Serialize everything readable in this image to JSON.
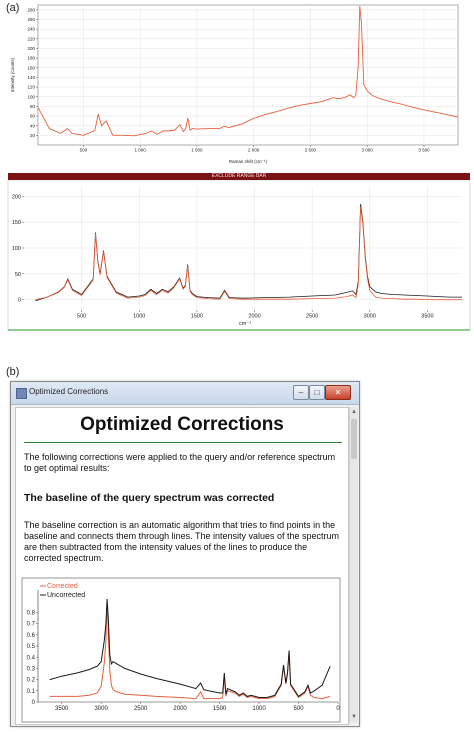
{
  "panel_a_label": "(a)",
  "panel_b_label": "(b)",
  "exclude_bar": {
    "label": "EXCLUDE RANGE BAR",
    "color": "#7a1414"
  },
  "colors": {
    "corrected": "#e8603c",
    "uncorrected": "#1a1a1a",
    "green_rule": "#2e7d32"
  },
  "window": {
    "title": "Optimized Corrections",
    "buttons": {
      "minimize": "–",
      "maximize": "□",
      "close": "✕"
    },
    "heading": "Optimized Corrections",
    "intro": "The following corrections were applied to the query and/or reference spectrum to get optimal results:",
    "subheading": "The baseline of the query spectrum was corrected",
    "description": "The baseline correction is an automatic algorithm that tries to find points in the baseline and connects them through lines. The intensity values of the spectrum are then subtracted from the intensity values of the lines to produce the corrected spectrum.",
    "scroll_up_icon": "▲",
    "scroll_down_icon": "▼"
  },
  "chart_data": [
    {
      "type": "line",
      "title": "",
      "xlabel": "Raman shift (cm⁻¹)",
      "ylabel": "Intensity (counts)",
      "xlim": [
        100,
        3800
      ],
      "ylim": [
        0,
        290
      ],
      "x_ticks": [
        500,
        1000,
        1500,
        2000,
        2500,
        3000,
        3500
      ],
      "x_tick_labels": [
        "500",
        "1 000",
        "1 500",
        "2 000",
        "2 500",
        "3 000",
        "3 500"
      ],
      "y_ticks": [
        20,
        40,
        60,
        80,
        100,
        120,
        140,
        160,
        180,
        200,
        220,
        240,
        260,
        280
      ],
      "grid": true,
      "series": [
        {
          "color": "#e8603c",
          "x": [
            100,
            200,
            300,
            360,
            400,
            500,
            600,
            630,
            660,
            700,
            760,
            850,
            950,
            1050,
            1100,
            1150,
            1200,
            1300,
            1350,
            1380,
            1400,
            1420,
            1440,
            1460,
            1500,
            1600,
            1700,
            1740,
            1780,
            1900,
            2000,
            2100,
            2200,
            2300,
            2400,
            2500,
            2600,
            2700,
            2750,
            2800,
            2850,
            2880,
            2900,
            2920,
            2935,
            2950,
            2970,
            3000,
            3050,
            3100,
            3200,
            3300,
            3400,
            3500,
            3600,
            3700,
            3800
          ],
          "y": [
            78,
            34,
            24,
            34,
            24,
            20,
            30,
            64,
            40,
            50,
            20,
            20,
            19,
            24,
            29,
            22,
            29,
            30,
            42,
            28,
            33,
            56,
            31,
            34,
            33,
            34,
            34,
            39,
            36,
            44,
            55,
            63,
            69,
            76,
            82,
            86,
            90,
            98,
            96,
            98,
            104,
            98,
            103,
            160,
            288,
            250,
            125,
            112,
            102,
            97,
            90,
            85,
            78,
            73,
            68,
            63,
            58
          ]
        }
      ]
    },
    {
      "type": "line",
      "title": "",
      "xlabel": "cm⁻¹",
      "ylabel": "",
      "xlim": [
        0,
        3800
      ],
      "ylim": [
        -20,
        220
      ],
      "x_ticks": [
        500,
        1000,
        1500,
        2000,
        2500,
        3000,
        3500
      ],
      "y_ticks": [
        0,
        50,
        100,
        150,
        200
      ],
      "grid": true,
      "series": [
        {
          "color": "#1a1a1a",
          "x": [
            100,
            200,
            300,
            350,
            380,
            420,
            500,
            600,
            620,
            640,
            660,
            690,
            720,
            800,
            900,
            1000,
            1050,
            1100,
            1150,
            1200,
            1250,
            1300,
            1350,
            1380,
            1400,
            1420,
            1440,
            1460,
            1500,
            1600,
            1700,
            1740,
            1780,
            1900,
            2100,
            2300,
            2500,
            2700,
            2800,
            2850,
            2880,
            2900,
            2920,
            2940,
            2960,
            2980,
            3000,
            3050,
            3100,
            3200,
            3300,
            3400,
            3500,
            3600,
            3700,
            3800
          ],
          "y": [
            -2,
            5,
            15,
            25,
            40,
            20,
            10,
            40,
            130,
            75,
            50,
            95,
            45,
            15,
            5,
            7,
            10,
            20,
            12,
            20,
            15,
            25,
            42,
            22,
            28,
            68,
            18,
            12,
            6,
            4,
            3,
            18,
            4,
            3,
            4,
            5,
            7,
            9,
            14,
            17,
            10,
            35,
            185,
            150,
            85,
            45,
            25,
            15,
            12,
            10,
            9,
            8,
            7,
            6,
            5,
            5
          ]
        },
        {
          "color": "#e8603c",
          "x": [
            100,
            200,
            300,
            350,
            380,
            420,
            500,
            600,
            620,
            640,
            660,
            690,
            720,
            800,
            900,
            1000,
            1050,
            1100,
            1150,
            1200,
            1250,
            1300,
            1350,
            1380,
            1400,
            1420,
            1440,
            1460,
            1500,
            1600,
            1700,
            1740,
            1780,
            1900,
            2100,
            2300,
            2500,
            2700,
            2800,
            2850,
            2880,
            2900,
            2920,
            2940,
            2960,
            2980,
            3000,
            3050,
            3100,
            3200,
            3300,
            3400,
            3500,
            3600,
            3700,
            3800
          ],
          "y": [
            0,
            5,
            14,
            24,
            38,
            18,
            8,
            38,
            128,
            73,
            48,
            93,
            43,
            13,
            3,
            5,
            8,
            18,
            10,
            18,
            13,
            23,
            40,
            20,
            26,
            66,
            16,
            10,
            4,
            2,
            1,
            16,
            2,
            1,
            1,
            1,
            2,
            3,
            6,
            9,
            4,
            30,
            180,
            145,
            80,
            40,
            18,
            5,
            3,
            2,
            1,
            1,
            0,
            0,
            0,
            0
          ]
        }
      ]
    },
    {
      "type": "line",
      "title": "",
      "xlabel": "",
      "ylabel": "",
      "xlim": [
        3800,
        0
      ],
      "ylim": [
        0,
        1.0
      ],
      "x_ticks": [
        3500,
        3000,
        2500,
        2000,
        1500,
        1000,
        500,
        0
      ],
      "y_ticks": [
        0,
        0.1,
        0.2,
        0.3,
        0.4,
        0.5,
        0.6,
        0.7,
        0.8
      ],
      "y_tick_labels": [
        "0",
        "0.1",
        "0.2",
        "0.3",
        "0.4",
        "0.5",
        "0.6",
        "0.7",
        "0.8"
      ],
      "grid": false,
      "legend": "top-left",
      "series": [
        {
          "name": "Corrected",
          "color": "#e8603c",
          "x": [
            3650,
            3500,
            3300,
            3150,
            3050,
            3000,
            2960,
            2940,
            2925,
            2910,
            2890,
            2870,
            2850,
            2800,
            2700,
            2500,
            2300,
            2000,
            1800,
            1740,
            1700,
            1500,
            1460,
            1440,
            1420,
            1400,
            1300,
            1250,
            1200,
            1150,
            1100,
            1000,
            900,
            800,
            720,
            690,
            660,
            640,
            620,
            600,
            500,
            420,
            380,
            350,
            300,
            200,
            100
          ],
          "y": [
            0.05,
            0.05,
            0.05,
            0.06,
            0.08,
            0.14,
            0.35,
            0.55,
            0.9,
            0.62,
            0.28,
            0.15,
            0.11,
            0.09,
            0.07,
            0.06,
            0.05,
            0.04,
            0.03,
            0.09,
            0.03,
            0.03,
            0.04,
            0.23,
            0.05,
            0.1,
            0.08,
            0.05,
            0.07,
            0.04,
            0.05,
            0.03,
            0.03,
            0.05,
            0.15,
            0.32,
            0.16,
            0.25,
            0.45,
            0.15,
            0.04,
            0.08,
            0.14,
            0.06,
            0.04,
            0.03,
            0.05
          ]
        },
        {
          "name": "Uncorrected",
          "color": "#1a1a1a",
          "x": [
            3650,
            3500,
            3300,
            3150,
            3050,
            3000,
            2960,
            2940,
            2925,
            2910,
            2890,
            2870,
            2850,
            2800,
            2700,
            2500,
            2300,
            2000,
            1800,
            1740,
            1700,
            1500,
            1460,
            1440,
            1420,
            1400,
            1300,
            1250,
            1200,
            1150,
            1100,
            1000,
            900,
            800,
            720,
            690,
            660,
            640,
            620,
            600,
            500,
            420,
            380,
            350,
            300,
            200,
            100
          ],
          "y": [
            0.2,
            0.23,
            0.26,
            0.29,
            0.32,
            0.36,
            0.55,
            0.7,
            0.92,
            0.75,
            0.42,
            0.34,
            0.36,
            0.34,
            0.3,
            0.25,
            0.21,
            0.16,
            0.12,
            0.17,
            0.11,
            0.08,
            0.08,
            0.26,
            0.07,
            0.12,
            0.09,
            0.06,
            0.08,
            0.05,
            0.06,
            0.04,
            0.04,
            0.06,
            0.16,
            0.33,
            0.17,
            0.26,
            0.46,
            0.16,
            0.05,
            0.09,
            0.15,
            0.08,
            0.1,
            0.15,
            0.32
          ]
        }
      ]
    }
  ]
}
